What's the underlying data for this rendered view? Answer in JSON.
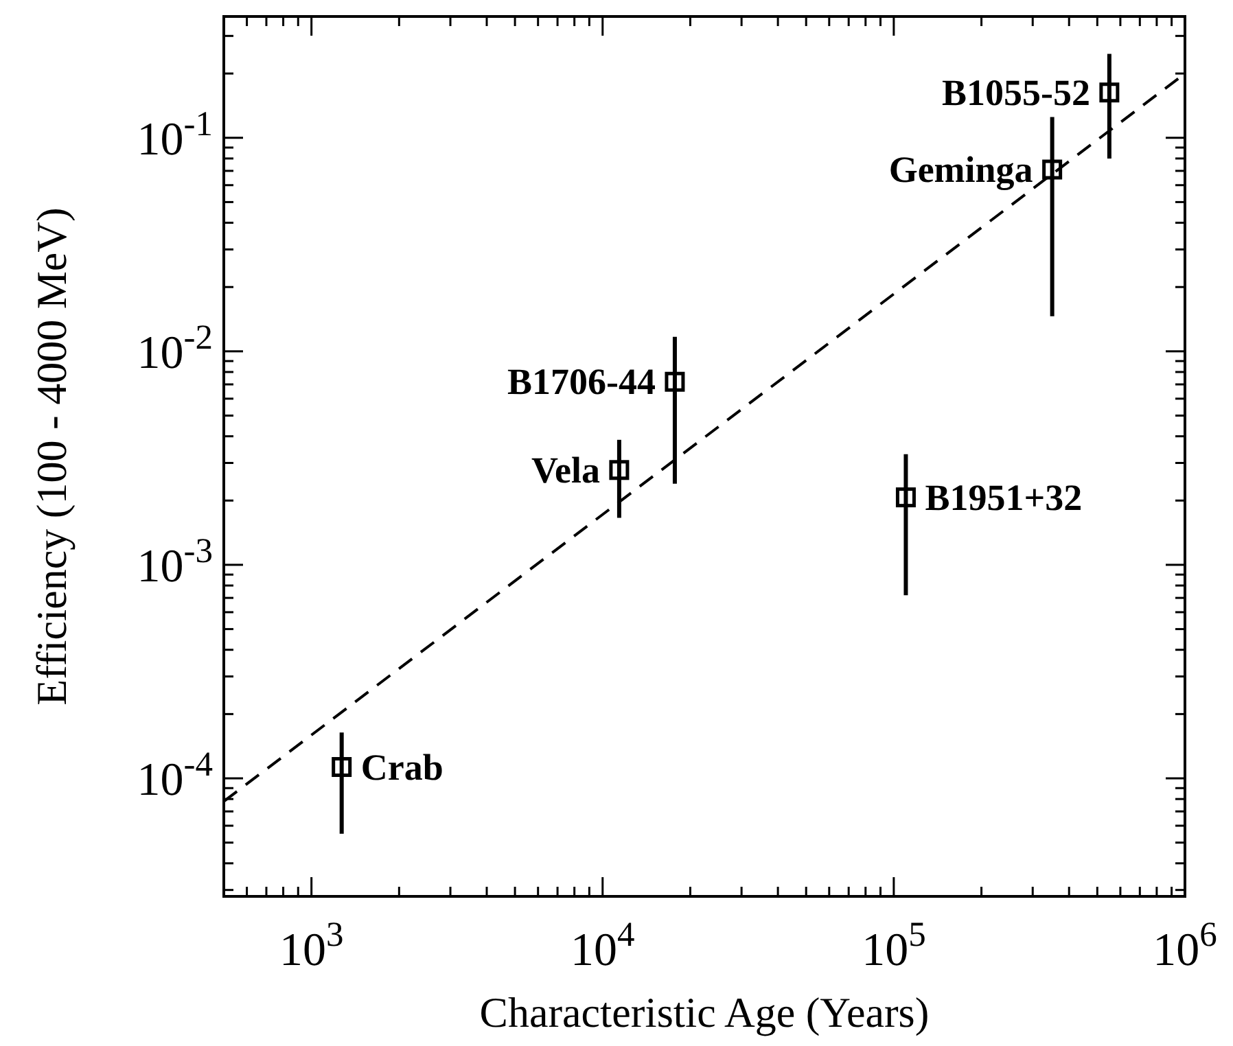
{
  "chart_data": {
    "type": "scatter",
    "xlabel": "Characteristic Age (Years)",
    "ylabel": "Efficiency (100 -  4000 MeV)",
    "log": "xy",
    "grid": false,
    "marker": "square",
    "xlim": [
      500,
      1000000
    ],
    "ylim": [
      2.8e-05,
      0.37
    ],
    "xticks": [
      {
        "value": 500,
        "label": null
      },
      {
        "value": 600,
        "label": null
      },
      {
        "value": 700,
        "label": null
      },
      {
        "value": 800,
        "label": null
      },
      {
        "value": 900,
        "label": null
      },
      {
        "value": 1000,
        "label": "10$^{3}$"
      },
      {
        "value": 2000,
        "label": null
      },
      {
        "value": 3000,
        "label": null
      },
      {
        "value": 4000,
        "label": null
      },
      {
        "value": 5000,
        "label": null
      },
      {
        "value": 6000,
        "label": null
      },
      {
        "value": 7000,
        "label": null
      },
      {
        "value": 8000,
        "label": null
      },
      {
        "value": 9000,
        "label": null
      },
      {
        "value": 10000,
        "label": "10$^{4}$"
      },
      {
        "value": 20000,
        "label": null
      },
      {
        "value": 30000,
        "label": null
      },
      {
        "value": 40000,
        "label": null
      },
      {
        "value": 50000,
        "label": null
      },
      {
        "value": 60000,
        "label": null
      },
      {
        "value": 70000,
        "label": null
      },
      {
        "value": 80000,
        "label": null
      },
      {
        "value": 90000,
        "label": null
      },
      {
        "value": 100000,
        "label": "10$^{5}$"
      },
      {
        "value": 200000,
        "label": null
      },
      {
        "value": 300000,
        "label": null
      },
      {
        "value": 400000,
        "label": null
      },
      {
        "value": 500000,
        "label": null
      },
      {
        "value": 600000,
        "label": null
      },
      {
        "value": 700000,
        "label": null
      },
      {
        "value": 800000,
        "label": null
      },
      {
        "value": 900000,
        "label": null
      },
      {
        "value": 1000000,
        "label": "10$^{6}$"
      }
    ],
    "yticks": [
      {
        "value": 3e-05,
        "label": null
      },
      {
        "value": 4e-05,
        "label": null
      },
      {
        "value": 5e-05,
        "label": null
      },
      {
        "value": 6e-05,
        "label": null
      },
      {
        "value": 7e-05,
        "label": null
      },
      {
        "value": 8e-05,
        "label": null
      },
      {
        "value": 9e-05,
        "label": null
      },
      {
        "value": 0.0001,
        "label": "10$^{-4}$"
      },
      {
        "value": 0.0002,
        "label": null
      },
      {
        "value": 0.0003,
        "label": null
      },
      {
        "value": 0.0004,
        "label": null
      },
      {
        "value": 0.0005,
        "label": null
      },
      {
        "value": 0.0006,
        "label": null
      },
      {
        "value": 0.0007,
        "label": null
      },
      {
        "value": 0.0008,
        "label": null
      },
      {
        "value": 0.0009,
        "label": null
      },
      {
        "value": 0.001,
        "label": "10$^{-3}$"
      },
      {
        "value": 0.002,
        "label": null
      },
      {
        "value": 0.003,
        "label": null
      },
      {
        "value": 0.004,
        "label": null
      },
      {
        "value": 0.005,
        "label": null
      },
      {
        "value": 0.006,
        "label": null
      },
      {
        "value": 0.007,
        "label": null
      },
      {
        "value": 0.008,
        "label": null
      },
      {
        "value": 0.009,
        "label": null
      },
      {
        "value": 0.01,
        "label": "10$^{-2}$"
      },
      {
        "value": 0.02,
        "label": null
      },
      {
        "value": 0.03,
        "label": null
      },
      {
        "value": 0.04,
        "label": null
      },
      {
        "value": 0.05,
        "label": null
      },
      {
        "value": 0.06,
        "label": null
      },
      {
        "value": 0.07,
        "label": null
      },
      {
        "value": 0.08,
        "label": null
      },
      {
        "value": 0.09,
        "label": null
      },
      {
        "value": 0.1,
        "label": "10$^{-1}$"
      },
      {
        "value": 0.2,
        "label": null
      },
      {
        "value": 0.3,
        "label": null
      }
    ],
    "series": [
      {
        "color": "#000000",
        "x": [
          1270,
          11400,
          17700,
          110000,
          350000,
          550000
        ],
        "values": [
          0.000113,
          0.00278,
          0.0072,
          0.00207,
          0.071,
          0.163
        ],
        "errors": [
          [
            5.5e-05,
            0.000164
          ],
          [
            0.00166,
            0.00385
          ],
          [
            0.0024,
            0.0117
          ],
          [
            0.00072,
            0.0033
          ],
          [
            0.0146,
            0.125
          ],
          [
            0.08,
            0.247
          ]
        ]
      },
      {
        "type": "line",
        "color": "#000000",
        "line_style": "dashed",
        "marker": "none",
        "x": [
          500,
          1000000
        ],
        "values": [
          7.8e-05,
          0.2
        ]
      }
    ],
    "annotations": [
      {
        "text": "Crab",
        "x": 1270,
        "y": 0.000113
      },
      {
        "text": "Vela",
        "x": 11400,
        "y": 0.00278
      },
      {
        "text": "B1706-44",
        "x": 17700,
        "y": 0.0072
      },
      {
        "text": "B1951+32",
        "x": 110000,
        "y": 0.00207
      },
      {
        "text": "Geminga",
        "x": 350000,
        "y": 0.071
      },
      {
        "text": "B1055-52",
        "x": 550000,
        "y": 0.163
      }
    ]
  }
}
